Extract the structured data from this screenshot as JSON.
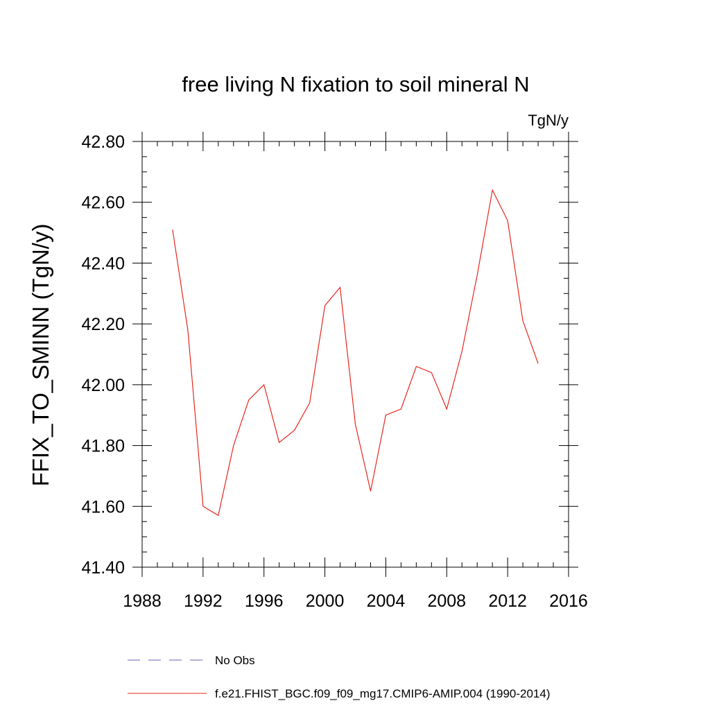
{
  "chart_data": {
    "type": "line",
    "title": "free living N fixation to soil mineral N",
    "units_label": "TgN/y",
    "ylabel": "FFIX_TO_SMINN  (TgN/y)",
    "xlabel": "",
    "xlim": [
      1988,
      2016
    ],
    "ylim": [
      41.4,
      42.8
    ],
    "x_ticks": [
      1988,
      1992,
      1996,
      2000,
      2004,
      2008,
      2012,
      2016
    ],
    "x_tick_labels": [
      "1988",
      "1992",
      "1996",
      "2000",
      "2004",
      "2008",
      "2012",
      "2016"
    ],
    "y_ticks": [
      41.4,
      41.6,
      41.8,
      42.0,
      42.2,
      42.4,
      42.6,
      42.8
    ],
    "y_tick_labels": [
      "41.40",
      "41.60",
      "41.80",
      "42.00",
      "42.20",
      "42.40",
      "42.60",
      "42.80"
    ],
    "grid": false,
    "legend_position": "bottom",
    "series": [
      {
        "name": "f.e21.FHIST_BGC.f09_f09_mg17.CMIP6-AMIP.004 (1990-2014)",
        "color": "#e8261c",
        "style": "solid",
        "x": [
          1990,
          1991,
          1992,
          1993,
          1994,
          1995,
          1996,
          1997,
          1998,
          1999,
          2000,
          2001,
          2002,
          2003,
          2004,
          2005,
          2006,
          2007,
          2008,
          2009,
          2010,
          2011,
          2012,
          2013,
          2014
        ],
        "y": [
          42.51,
          42.18,
          41.6,
          41.57,
          41.8,
          41.95,
          42.0,
          41.81,
          41.85,
          41.94,
          42.26,
          42.32,
          41.87,
          41.65,
          41.9,
          41.92,
          42.06,
          42.04,
          41.92,
          42.11,
          42.36,
          42.64,
          42.54,
          42.21,
          42.07
        ]
      }
    ],
    "legend_entries": [
      {
        "label": "No Obs",
        "color": "#6b5fb5",
        "style": "dashed"
      },
      {
        "label": "f.e21.FHIST_BGC.f09_f09_mg17.CMIP6-AMIP.004 (1990-2014)",
        "color": "#e8261c",
        "style": "solid"
      }
    ]
  }
}
